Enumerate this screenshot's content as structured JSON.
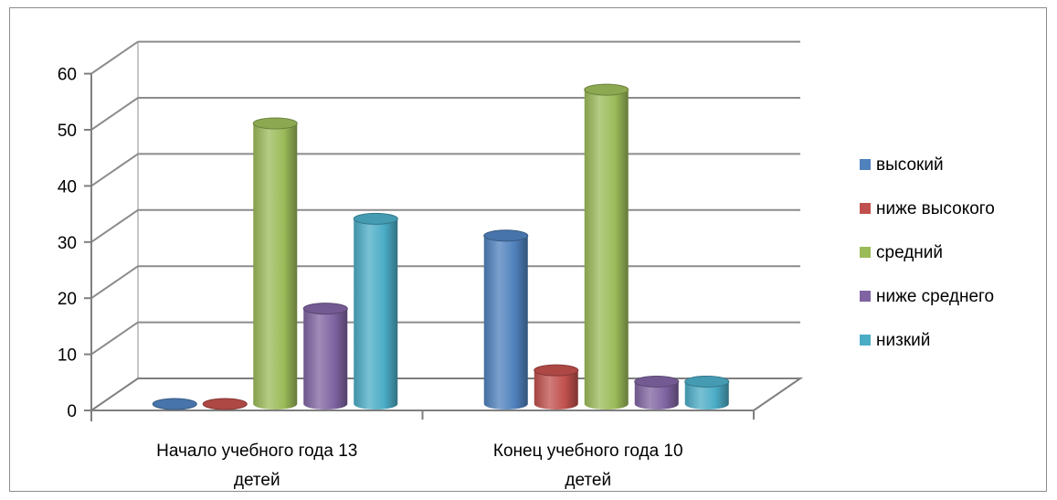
{
  "chart_data": {
    "type": "bar",
    "style": "3d-cylinder",
    "categories": [
      [
        "Начало учебного года 13",
        "детей"
      ],
      [
        "Конец учебного года 10",
        "детей"
      ]
    ],
    "series": [
      {
        "name": "высокий",
        "values": [
          0,
          30
        ],
        "color": "#4f81bd"
      },
      {
        "name": "ниже высокого",
        "values": [
          0,
          6
        ],
        "color": "#c0504d"
      },
      {
        "name": "средний",
        "values": [
          50,
          56
        ],
        "color": "#9bbb59"
      },
      {
        "name": "ниже среднего",
        "values": [
          17,
          4
        ],
        "color": "#8064a2"
      },
      {
        "name": "низкий",
        "values": [
          33,
          4
        ],
        "color": "#4bacc6"
      }
    ],
    "ylim": [
      0,
      60
    ],
    "yticks": [
      0,
      10,
      20,
      30,
      40,
      50,
      60
    ],
    "grid": true,
    "legend_position": "right"
  }
}
